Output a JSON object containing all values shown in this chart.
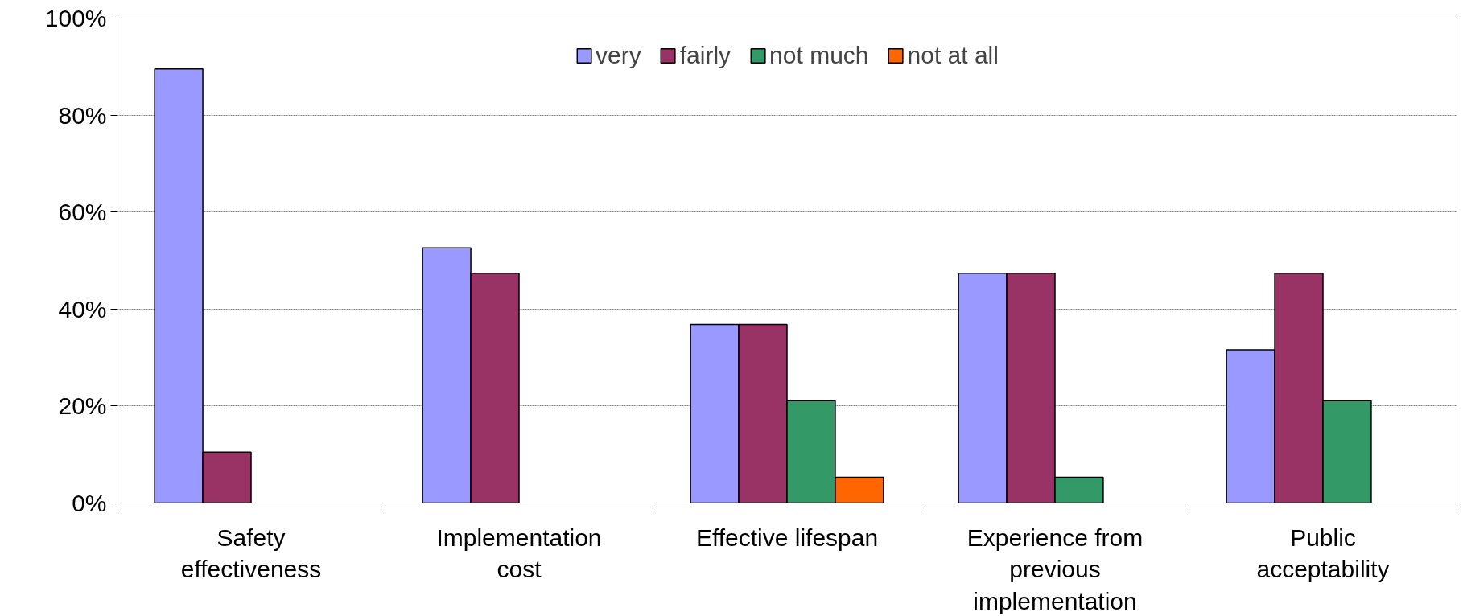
{
  "chart_data": {
    "type": "bar",
    "categories": [
      "Safety effectiveness",
      "Implementation cost",
      "Effective lifespan",
      "Experience from previous implementation",
      "Public acceptability"
    ],
    "series": [
      {
        "name": "very",
        "color": "#9999ff",
        "values": [
          89.5,
          52.6,
          36.8,
          47.4,
          31.6
        ]
      },
      {
        "name": "fairly",
        "color": "#993366",
        "values": [
          10.5,
          47.4,
          36.8,
          47.4,
          47.4
        ]
      },
      {
        "name": "not much",
        "color": "#339966",
        "values": [
          0,
          0,
          21.1,
          5.3,
          21.1
        ]
      },
      {
        "name": "not at all",
        "color": "#ff6600",
        "values": [
          0,
          0,
          5.3,
          0,
          0
        ]
      }
    ],
    "ylim": [
      0,
      100
    ],
    "yticks": [
      {
        "value": 0,
        "label": "0%"
      },
      {
        "value": 20,
        "label": "20%"
      },
      {
        "value": 40,
        "label": "40%"
      },
      {
        "value": 60,
        "label": "60%"
      },
      {
        "value": 80,
        "label": "80%"
      },
      {
        "value": 100,
        "label": "100%"
      }
    ],
    "grid": "y",
    "legend": "top"
  }
}
